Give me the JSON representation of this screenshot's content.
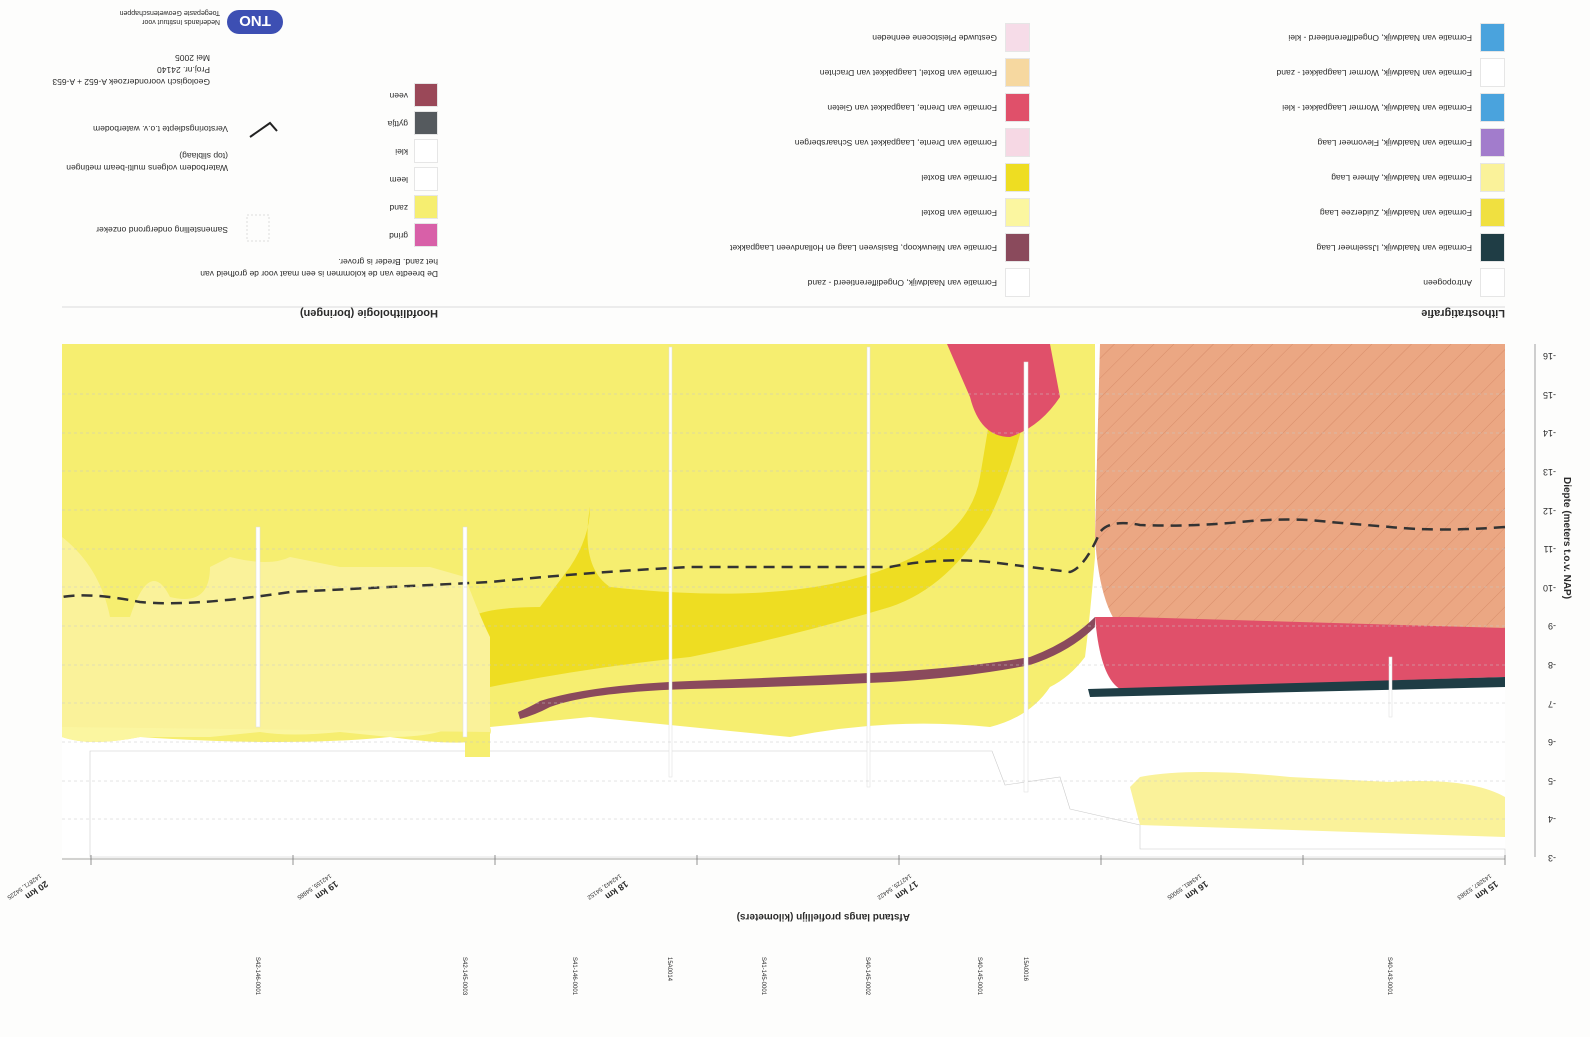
{
  "legend_litho": {
    "title": "Lithostratigrafie",
    "items": [
      {
        "label": "Antropogeen",
        "color": "#ffffff"
      },
      {
        "label": "Formatie van Naaldwijk, IJsselmeer Laag",
        "color": "#1f3d45"
      },
      {
        "label": "Formatie van Naaldwijk, Zuiderzee Laag",
        "color": "#f0e040"
      },
      {
        "label": "Formatie van Naaldwijk, Almere Laag",
        "color": "#faf29a"
      },
      {
        "label": "Formatie van Naaldwijk, Flevomeer Laag",
        "color": "#a27ccc"
      },
      {
        "label": "Formatie van Naaldwijk, Wormer Laagpakket - klei",
        "color": "#4aa3dd"
      },
      {
        "label": "Formatie van Naaldwijk, Wormer Laagpakket - zand",
        "color": "#ffffff"
      },
      {
        "label": "Formatie van Naaldwijk, Ongedifferentieerd - klei",
        "color": "#4aa3dd"
      },
      {
        "label": "Formatie van Naaldwijk, Ongedifferentieerd - zand",
        "color": "#ffffff"
      },
      {
        "label": "Formatie van Nieuwkoop, Basisveen Laag en Hollandveen Laagpakket",
        "color": "#8a4a5c"
      },
      {
        "label": "Formatie van Boxtel",
        "color": "#fbf6a0"
      },
      {
        "label": "Formatie van Boxtel",
        "color": "#eedd22"
      },
      {
        "label": "Formatie van Drente, Laagpakket van Schaarsbergen",
        "color": "#f6d8e4"
      },
      {
        "label": "Formatie van Drente, Laagpakket van Gieten",
        "color": "#e0506a"
      },
      {
        "label": "Formatie van Boxtel, Laagpakket van Drachten",
        "color": "#f6d8a0"
      },
      {
        "label": "Gestuwde Pleistocene eenheden",
        "color": "#f6dce8"
      }
    ]
  },
  "legend_hoofd": {
    "title": "Hoofdlithologie (boringen)",
    "note_1": "De breedte van de kolommen is een maat voor de grofheid van",
    "note_2": "het zand. Breder is grover.",
    "items": [
      {
        "label": "grind",
        "color": "#d860a8"
      },
      {
        "label": "zand",
        "color": "#f6ee70"
      },
      {
        "label": "leem",
        "color": "#ffffff"
      },
      {
        "label": "klei",
        "color": "#ffffff"
      },
      {
        "label": "gyttja",
        "color": "#555a5e"
      },
      {
        "label": "veen",
        "color": "#9a4858"
      }
    ],
    "symbols": [
      {
        "label": "Samenstelling ondergrond onzeker"
      },
      {
        "label": "Waterbodem volgens multi-beam metingen"
      },
      {
        "label": "(top sliblaag)"
      },
      {
        "label": "Verstoringsdiepte t.o.v. waterbodem"
      }
    ],
    "project": [
      "Geologisch vooronderzoek A-652 + A-653",
      "Proj.nr. 24140",
      "Mei 2005"
    ],
    "org": [
      "Nederlands Instituut voor",
      "Toegepaste Geowetenschappen"
    ],
    "logo_text": "TNO"
  },
  "axis": {
    "y_title": "Diepte (meters t.o.v. NAP)",
    "y_ticks": [
      "-3",
      "-4",
      "-5",
      "-6",
      "-7",
      "-8",
      "-9",
      "-10",
      "-11",
      "-12",
      "-13",
      "-14",
      "-15",
      "-16"
    ],
    "x_title": "Afstand langs profiellijn (kilometers)",
    "x_marks": [
      {
        "km": "15 km",
        "sub": "143287, 53983"
      },
      {
        "km": "16 km",
        "sub": "143481, 59005"
      },
      {
        "km": "17 km",
        "sub": "142725, 54422"
      },
      {
        "km": "18 km",
        "sub": "142443, 54152"
      },
      {
        "km": "19 km",
        "sub": "142155, 54885"
      },
      {
        "km": "20 km",
        "sub": "142871, 54225"
      }
    ]
  },
  "boreholes": [
    "S40-143-0001",
    "15A0016",
    "S40-145-0001",
    "S40-145-0002",
    "S41-145-0001",
    "15A0014",
    "S41-146-0001",
    "S42-145-0003",
    "S42-146-0001"
  ]
}
